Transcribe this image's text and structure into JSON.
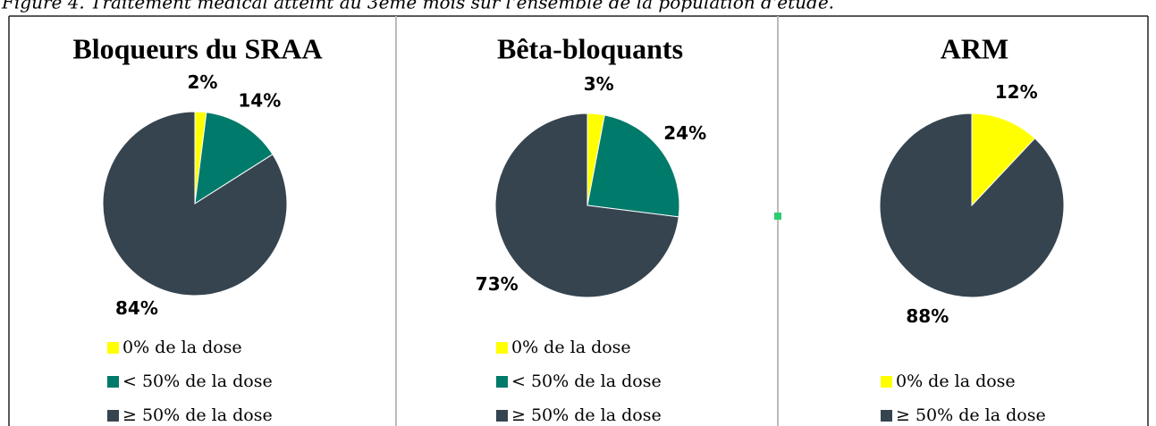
{
  "caption": "Figure 4. Traitement médical atteint au 3ème mois sur l'ensemble de la population d'étude.",
  "chart_data": [
    {
      "type": "pie",
      "title": "Bloqueurs du SRAA",
      "categories": [
        "0% de la dose",
        "< 50% de la dose",
        "≥ 50% de la dose"
      ],
      "values": [
        2,
        14,
        84
      ],
      "value_labels": [
        "2%",
        "14%",
        "84%"
      ],
      "colors": [
        "#ffff00",
        "#007a6a",
        "#36444f"
      ]
    },
    {
      "type": "pie",
      "title": "Bêta-bloquants",
      "categories": [
        "0% de la dose",
        "< 50% de la dose",
        "≥ 50% de la dose"
      ],
      "values": [
        3,
        24,
        73
      ],
      "value_labels": [
        "3%",
        "24%",
        "73%"
      ],
      "colors": [
        "#ffff00",
        "#007a6a",
        "#36444f"
      ]
    },
    {
      "type": "pie",
      "title": "ARM",
      "categories": [
        "0% de la dose",
        "≥ 50% de la dose"
      ],
      "values": [
        12,
        88
      ],
      "value_labels": [
        "12%",
        "88%"
      ],
      "colors": [
        "#ffff00",
        "#36444f"
      ]
    }
  ]
}
